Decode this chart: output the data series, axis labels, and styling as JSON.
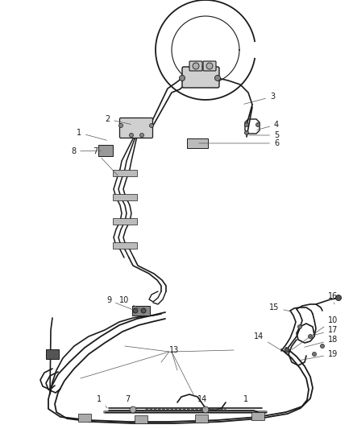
{
  "background_color": "#ffffff",
  "line_color": "#1a1a1a",
  "label_color": "#1a1a1a",
  "label_fontsize": 7.0,
  "figsize": [
    4.38,
    5.33
  ],
  "dpi": 100
}
